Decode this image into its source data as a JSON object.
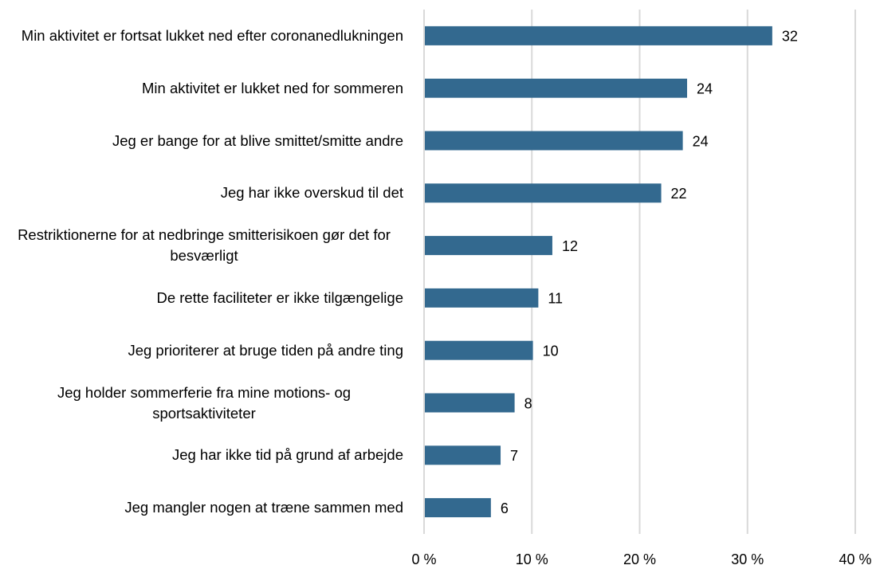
{
  "chart_data": {
    "type": "bar",
    "orientation": "horizontal",
    "categories": [
      "Min aktivitet er fortsat lukket ned efter coronanedlukningen",
      "Min aktivitet er lukket ned for sommeren",
      "Jeg er bange for at blive smittet/smitte andre",
      "Jeg har ikke overskud til det",
      "Restriktionerne for at nedbringe smitterisikoen gør det for besværligt",
      "De rette faciliteter er ikke tilgængelige",
      "Jeg prioriterer at bruge tiden på andre ting",
      "Jeg holder sommerferie fra mine motions- og sportsaktiviteter",
      "Jeg har ikke tid på grund af arbejde",
      "Jeg mangler nogen at træne sammen med"
    ],
    "values": [
      32.3,
      24.4,
      24.0,
      22.0,
      11.9,
      10.6,
      10.1,
      8.4,
      7.1,
      6.2
    ],
    "value_labels": [
      "32",
      "24",
      "24",
      "22",
      "12",
      "11",
      "10",
      "8",
      "7",
      "6"
    ],
    "color": "#33698f",
    "xlim": [
      0,
      40
    ],
    "xticks": [
      {
        "value": 0,
        "label": "0 %"
      },
      {
        "value": 10,
        "label": "10 %"
      },
      {
        "value": 20,
        "label": "20 %"
      },
      {
        "value": 30,
        "label": "30 %"
      },
      {
        "value": 40,
        "label": "40 %"
      }
    ],
    "grid": true
  }
}
